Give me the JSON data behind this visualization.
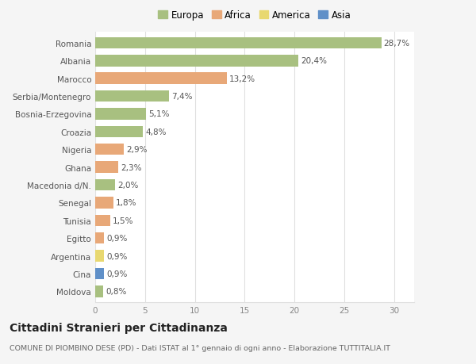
{
  "categories": [
    "Romania",
    "Albania",
    "Marocco",
    "Serbia/Montenegro",
    "Bosnia-Erzegovina",
    "Croazia",
    "Nigeria",
    "Ghana",
    "Macedonia d/N.",
    "Senegal",
    "Tunisia",
    "Egitto",
    "Argentina",
    "Cina",
    "Moldova"
  ],
  "values": [
    28.7,
    20.4,
    13.2,
    7.4,
    5.1,
    4.8,
    2.9,
    2.3,
    2.0,
    1.8,
    1.5,
    0.9,
    0.9,
    0.9,
    0.8
  ],
  "labels": [
    "28,7%",
    "20,4%",
    "13,2%",
    "7,4%",
    "5,1%",
    "4,8%",
    "2,9%",
    "2,3%",
    "2,0%",
    "1,8%",
    "1,5%",
    "0,9%",
    "0,9%",
    "0,9%",
    "0,8%"
  ],
  "continents": [
    "Europa",
    "Europa",
    "Africa",
    "Europa",
    "Europa",
    "Europa",
    "Africa",
    "Africa",
    "Europa",
    "Africa",
    "Africa",
    "Africa",
    "America",
    "Asia",
    "Europa"
  ],
  "continent_colors": {
    "Europa": "#a8c080",
    "Africa": "#e8a878",
    "America": "#e8d870",
    "Asia": "#6090c8"
  },
  "legend_order": [
    "Europa",
    "Africa",
    "America",
    "Asia"
  ],
  "title": "Cittadini Stranieri per Cittadinanza",
  "subtitle": "COMUNE DI PIOMBINO DESE (PD) - Dati ISTAT al 1° gennaio di ogni anno - Elaborazione TUTTITALIA.IT",
  "xlim": [
    0,
    32
  ],
  "xticks": [
    0,
    5,
    10,
    15,
    20,
    25,
    30
  ],
  "background_color": "#f5f5f5",
  "plot_background": "#ffffff",
  "grid_color": "#e0e0e0",
  "bar_height": 0.65,
  "label_fontsize": 7.5,
  "tick_fontsize": 7.5,
  "title_fontsize": 10,
  "subtitle_fontsize": 6.8
}
